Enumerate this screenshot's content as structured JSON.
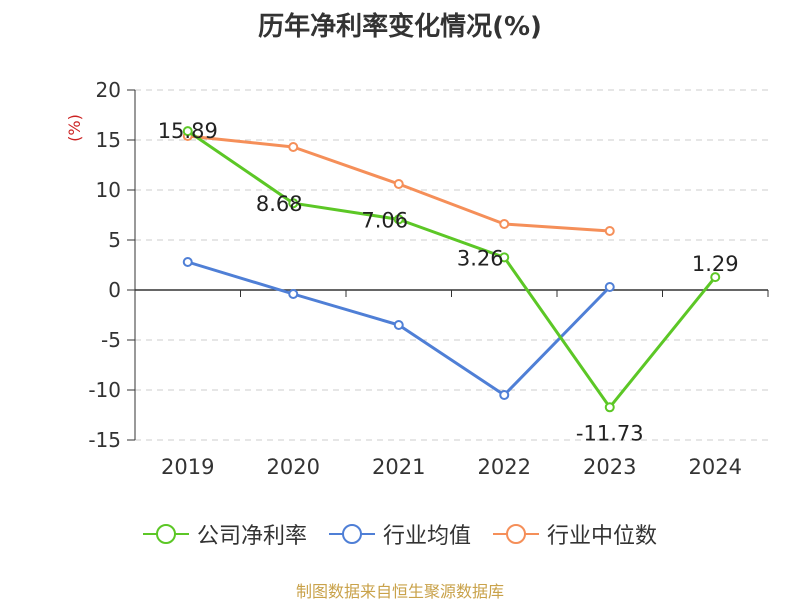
{
  "header": {
    "title": "历年净利率变化情况(%)"
  },
  "chart_data": {
    "type": "line",
    "title": "历年净利率变化情况(%)",
    "ylabel": "(%)",
    "xlabel": "",
    "categories": [
      "2019",
      "2020",
      "2021",
      "2022",
      "2023",
      "2024"
    ],
    "ylim": [
      -15,
      20
    ],
    "yticks": [
      20,
      15,
      10,
      5,
      0,
      -5,
      -10,
      -15
    ],
    "grid": true,
    "legend_position": "bottom",
    "series": [
      {
        "name": "公司净利率",
        "color": "#5cc726",
        "values": [
          15.89,
          8.68,
          7.06,
          3.26,
          -11.73,
          1.29
        ],
        "labels": [
          "15.89",
          "8.68",
          "7.06",
          "3.26",
          "-11.73",
          "1.29"
        ]
      },
      {
        "name": "行业均值",
        "color": "#4f7fd6",
        "values": [
          2.8,
          -0.4,
          -3.5,
          -10.5,
          0.3,
          null
        ]
      },
      {
        "name": "行业中位数",
        "color": "#f58f59",
        "values": [
          15.4,
          14.3,
          10.6,
          6.6,
          5.9,
          null
        ]
      }
    ]
  },
  "footer": {
    "source": "制图数据来自恒生聚源数据库"
  }
}
